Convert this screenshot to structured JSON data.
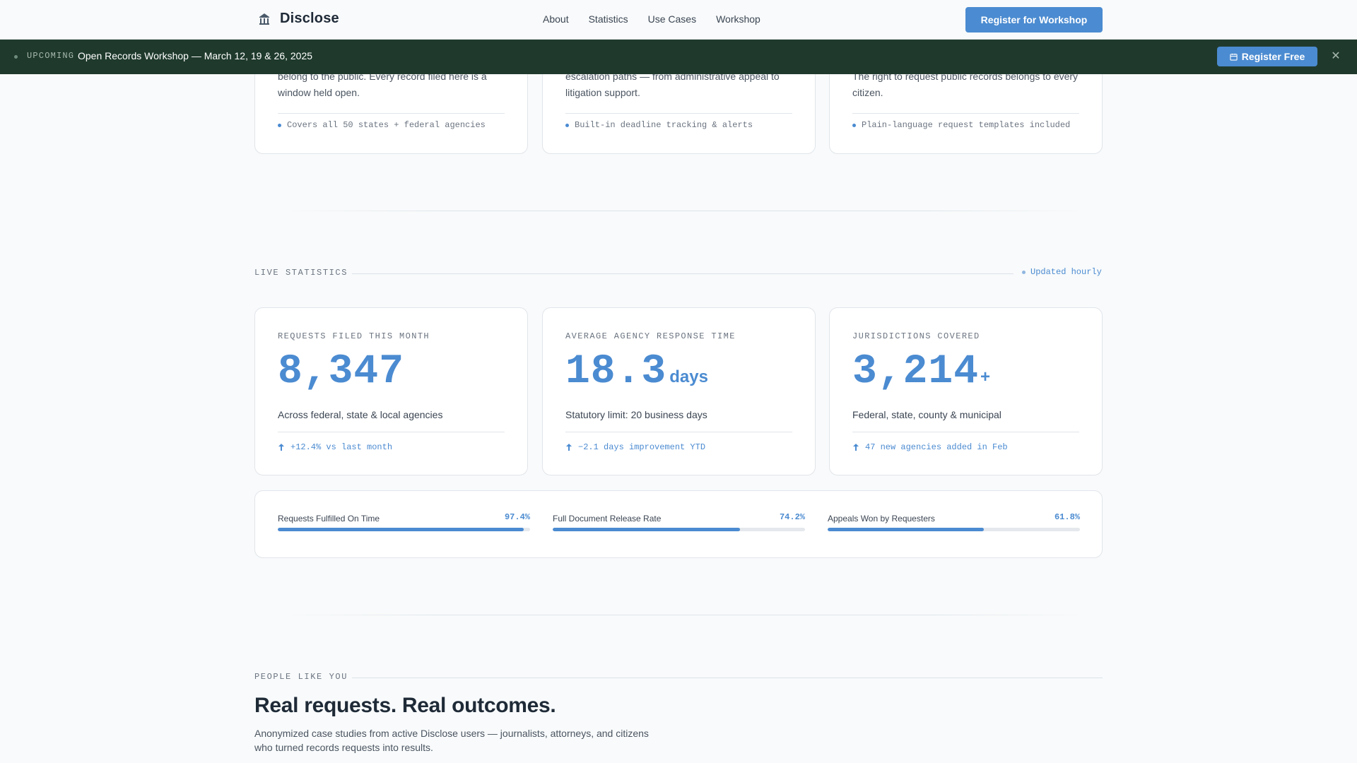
{
  "nav": {
    "brand": "Disclose",
    "links": [
      "About",
      "Statistics",
      "Use Cases",
      "Workshop"
    ],
    "cta": "Register for Workshop"
  },
  "banner": {
    "tag": "UPCOMING",
    "text": "Open Records Workshop — March 12, 19 & 26, 2025",
    "cta": "Register Free"
  },
  "features": [
    {
      "text": "belong to the public. Every record filed here is a window held open.",
      "note": "Covers all 50 states + federal agencies"
    },
    {
      "text": "escalation paths — from administrative appeal to litigation support.",
      "note": "Built-in deadline tracking & alerts"
    },
    {
      "text": "The right to request public records belongs to every citizen.",
      "note": "Plain-language request templates included"
    }
  ],
  "stats_section": {
    "label": "LIVE STATISTICS",
    "updated": "Updated hourly",
    "cards": [
      {
        "label": "REQUESTS FILED THIS MONTH",
        "value": "8,347",
        "unit": "",
        "suffix": "",
        "desc": "Across federal, state & local agencies",
        "trend": "+12.4% vs last month"
      },
      {
        "label": "AVERAGE AGENCY RESPONSE TIME",
        "value": "18.3",
        "unit": "days",
        "suffix": "",
        "desc": "Statutory limit: 20 business days",
        "trend": "−2.1 days improvement YTD"
      },
      {
        "label": "JURISDICTIONS COVERED",
        "value": "3,214",
        "unit": "",
        "suffix": "+",
        "desc": "Federal, state, county & municipal",
        "trend": "47 new agencies added in Feb"
      }
    ],
    "progress": [
      {
        "label": "Requests Fulfilled On Time",
        "value": "97.4%",
        "fraction": 0.974
      },
      {
        "label": "Full Document Release Rate",
        "value": "74.2%",
        "fraction": 0.742
      },
      {
        "label": "Appeals Won by Requesters",
        "value": "61.8%",
        "fraction": 0.618
      }
    ]
  },
  "people": {
    "label": "PEOPLE LIKE YOU",
    "title": "Real requests. Real outcomes.",
    "lede": "Anonymized case studies from active Disclose users — journalists, attorneys, and citizens who turned records requests into results."
  },
  "colors": {
    "accent": "#4b8bd1",
    "banner_bg": "#1f3a2d",
    "text_dark": "#1f2a37"
  }
}
